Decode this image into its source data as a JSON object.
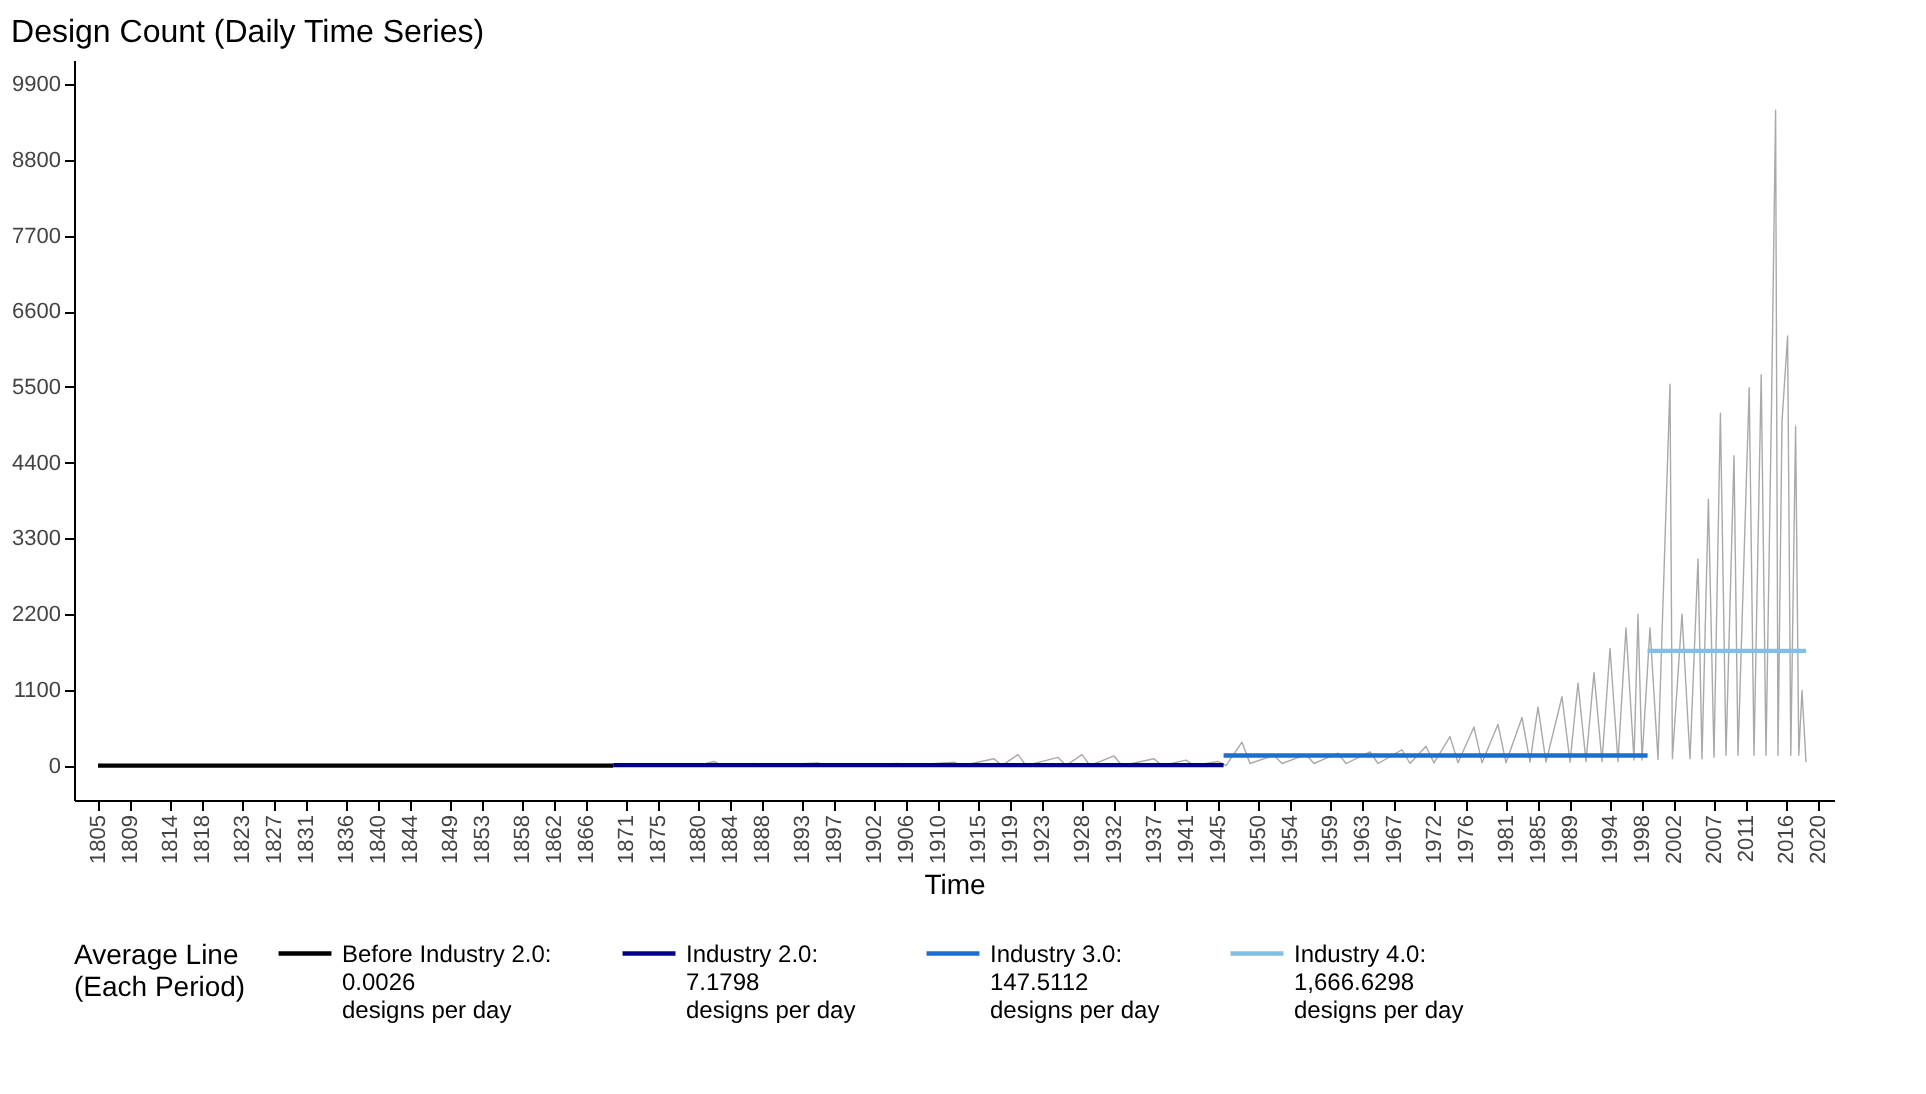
{
  "chart_data": {
    "type": "line",
    "title": "Design Count (Daily Time Series)",
    "xlabel": "Time",
    "legend_title": "Average Line\n(Each Period)",
    "legend": "bottom",
    "grid": false,
    "marker": "none",
    "line_style": "solid",
    "xlim": [
      1802,
      2022
    ],
    "ylim": [
      -500,
      10250
    ],
    "xticks": [
      1805,
      1809,
      1814,
      1818,
      1823,
      1827,
      1831,
      1836,
      1840,
      1844,
      1849,
      1853,
      1858,
      1862,
      1866,
      1871,
      1875,
      1880,
      1884,
      1888,
      1893,
      1897,
      1902,
      1906,
      1910,
      1915,
      1919,
      1923,
      1928,
      1932,
      1937,
      1941,
      1945,
      1950,
      1954,
      1959,
      1963,
      1967,
      1972,
      1976,
      1981,
      1985,
      1989,
      1994,
      1998,
      2002,
      2007,
      2011,
      2016,
      2020
    ],
    "yticks": [
      0,
      1100,
      2200,
      3300,
      4400,
      5500,
      6600,
      7700,
      8800,
      9900
    ],
    "series": [
      {
        "color": "#a9a9a9",
        "x": [
          1805,
          1870,
          1880,
          1882,
          1883,
          1887,
          1888,
          1895,
          1896,
          1905,
          1906,
          1912,
          1913,
          1917,
          1918,
          1920,
          1921,
          1925,
          1926,
          1928,
          1929,
          1932,
          1933,
          1937,
          1938,
          1941,
          1942,
          1945,
          1946,
          1948,
          1949,
          1952,
          1953,
          1956,
          1957,
          1960,
          1961,
          1964,
          1965,
          1968,
          1969,
          1971,
          1972,
          1974,
          1975,
          1977,
          1978,
          1980,
          1981,
          1983,
          1984,
          1985,
          1986,
          1988,
          1989,
          1990,
          1991,
          1992,
          1993,
          1994,
          1995,
          1996,
          1997,
          1997.5,
          1998,
          1999,
          2000,
          2001.5,
          2001.8,
          2003,
          2004,
          2005,
          2005.5,
          2006.3,
          2007,
          2007.8,
          2008.5,
          2009.5,
          2010,
          2011.4,
          2012,
          2012.9,
          2013.5,
          2014.2,
          2014.7,
          2015,
          2015.5,
          2016.2,
          2016.6,
          2017.2,
          2017.6,
          2018,
          2018.5
        ],
        "values": [
          0,
          0,
          0,
          60,
          0,
          30,
          0,
          40,
          0,
          30,
          0,
          50,
          0,
          100,
          0,
          160,
          0,
          120,
          0,
          160,
          0,
          140,
          0,
          100,
          0,
          80,
          0,
          60,
          0,
          340,
          30,
          150,
          30,
          160,
          30,
          180,
          30,
          200,
          30,
          230,
          30,
          280,
          40,
          420,
          40,
          560,
          40,
          600,
          40,
          700,
          50,
          850,
          50,
          1000,
          50,
          1200,
          60,
          1350,
          60,
          1700,
          60,
          2000,
          80,
          2200,
          80,
          2000,
          90,
          5540,
          100,
          2200,
          100,
          3000,
          100,
          3870,
          120,
          5120,
          150,
          4500,
          150,
          5490,
          150,
          5680,
          150,
          5300,
          9520,
          150,
          5000,
          6240,
          150,
          4930,
          150,
          1090,
          50
        ]
      },
      {
        "name": "Before Industry 2.0:\n0.0026\ndesigns per day",
        "color": "#000000",
        "x": [
          1805,
          1869.4
        ],
        "values": [
          0.0026,
          0.0026
        ]
      },
      {
        "name": "Industry 2.0:\n7.1798\ndesigns per day",
        "color": "#00008b",
        "x": [
          1869.4,
          1945.7
        ],
        "values": [
          7.1798,
          7.1798
        ]
      },
      {
        "name": "Industry 3.0:\n147.5112\ndesigns per day",
        "color": "#1a6fd0",
        "x": [
          1945.7,
          1998.7
        ],
        "values": [
          147.5112,
          147.5112
        ]
      },
      {
        "name": "Industry 4.0:\n1,666.6298\ndesigns per day",
        "color": "#7fbfe8",
        "x": [
          1998.7,
          2018.5
        ],
        "values": [
          1666.6298,
          1666.6298
        ]
      }
    ]
  }
}
